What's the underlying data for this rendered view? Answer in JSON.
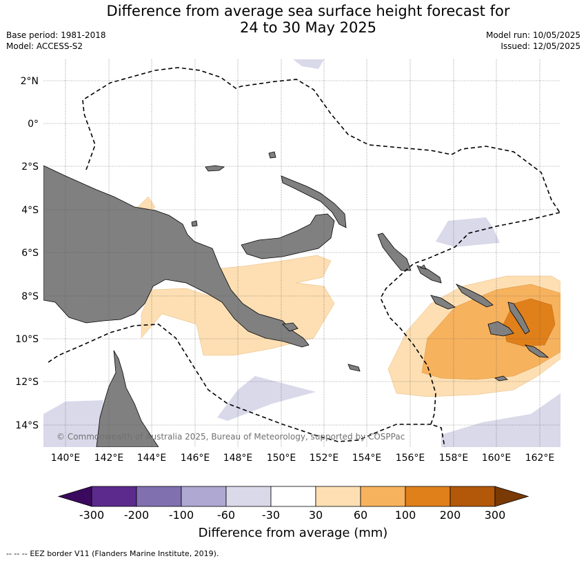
{
  "title_line1": "Difference from average sea surface height forecast for",
  "title_line2": "24 to 30 May 2025",
  "base_period": "Base period: 1981-2018",
  "model": "Model: ACCESS-S2",
  "model_run": "Model run: 10/05/2025",
  "issued": "Issued: 12/05/2025",
  "copyright": "© Commonwealth of Australia 2025, Bureau of Meteorology, supported by COSPPac",
  "lon_labels": [
    "140°E",
    "142°E",
    "144°E",
    "146°E",
    "148°E",
    "150°E",
    "152°E",
    "154°E",
    "156°E",
    "158°E",
    "160°E",
    "162°E"
  ],
  "lat_labels": [
    "2°N",
    "0°",
    "2°S",
    "4°S",
    "6°S",
    "8°S",
    "10°S",
    "12°S",
    "14°S"
  ],
  "colorbar": {
    "title": "Difference from average (mm)",
    "ticks": [
      "-300",
      "-200",
      "-100",
      "-60",
      "-30",
      "30",
      "60",
      "100",
      "200",
      "300"
    ],
    "colors": [
      "#5b2a8c",
      "#8070b0",
      "#aea8d2",
      "#d9d9ea",
      "#ffffff",
      "#fddfb3",
      "#f7b25e",
      "#e0801a",
      "#b25808"
    ],
    "extend_low": "#3a0a5e",
    "extend_high": "#7a3a05"
  },
  "legend_note": "EEZ border V11 (Flanders Marine Institute, 2019).",
  "colors": {
    "land": "#808080",
    "grid": "#555555",
    "eez": "#000000"
  }
}
